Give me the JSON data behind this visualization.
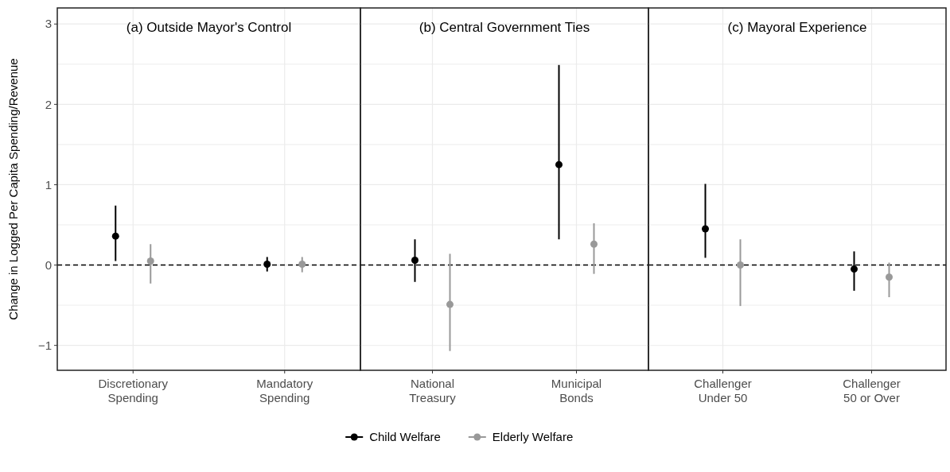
{
  "chart_data": [
    {
      "type": "scatter",
      "title": "(a) Outside Mayor's Control",
      "ylabel": "Change in Logged Per Capita Spending/Revenue",
      "categories": [
        "Discretionary\nSpending",
        "Mandatory\nSpending"
      ],
      "ylim": [
        -1.31,
        3.2
      ],
      "yticks": [
        {
          "value": -1,
          "label": "−1"
        },
        {
          "value": -0.5,
          "label": null
        },
        0,
        {
          "value": 0.5,
          "label": null
        },
        1,
        {
          "value": 1.5,
          "label": null
        },
        2,
        {
          "value": 2.5,
          "label": null
        },
        3
      ],
      "grid": true,
      "marker": "circle",
      "legend": "bottom",
      "ref_lines": [
        {
          "axis": "y",
          "value": 0,
          "line_style": "dashed",
          "color": "#000000"
        }
      ],
      "series": [
        {
          "name": "Child Welfare",
          "color": "#000000",
          "values": [
            0.36,
            0.01
          ],
          "errors": [
            [
              0.05,
              0.74
            ],
            [
              -0.08,
              0.1
            ]
          ]
        },
        {
          "name": "Elderly Welfare",
          "color": "#999999",
          "values": [
            0.05,
            0.01
          ],
          "errors": [
            [
              -0.23,
              0.26
            ],
            [
              -0.09,
              0.1
            ]
          ]
        }
      ]
    },
    {
      "type": "scatter",
      "title": "(b) Central Government Ties",
      "categories": [
        "National\nTreasury",
        "Municipal\nBonds"
      ],
      "ylim": [
        -1.31,
        3.2
      ],
      "yticks": [
        {
          "value": -1,
          "label": null
        },
        {
          "value": -0.5,
          "label": null
        },
        0,
        {
          "value": 0.5,
          "label": null
        },
        1,
        {
          "value": 1.5,
          "label": null
        },
        2,
        {
          "value": 2.5,
          "label": null
        },
        3
      ],
      "tick_labels": "x",
      "grid": true,
      "marker": "circle",
      "ref_lines": [
        {
          "axis": "y",
          "value": 0,
          "line_style": "dashed",
          "color": "#000000"
        }
      ],
      "series": [
        {
          "color": "#000000",
          "values": [
            0.06,
            1.25
          ],
          "errors": [
            [
              -0.21,
              0.32
            ],
            [
              0.32,
              2.49
            ]
          ]
        },
        {
          "color": "#999999",
          "values": [
            -0.49,
            0.26
          ],
          "errors": [
            [
              -1.07,
              0.14
            ],
            [
              -0.11,
              0.52
            ]
          ]
        }
      ]
    },
    {
      "type": "scatter",
      "title": "(c) Mayoral Experience",
      "categories": [
        "Challenger\nUnder 50",
        "Challenger\n50 or Over"
      ],
      "ylim": [
        -1.31,
        3.2
      ],
      "yticks": [
        {
          "value": -1,
          "label": null
        },
        {
          "value": -0.5,
          "label": null
        },
        0,
        {
          "value": 0.5,
          "label": null
        },
        1,
        {
          "value": 1.5,
          "label": null
        },
        2,
        {
          "value": 2.5,
          "label": null
        },
        3
      ],
      "tick_labels": "x",
      "grid": true,
      "marker": "circle",
      "ref_lines": [
        {
          "axis": "y",
          "value": 0,
          "line_style": "dashed",
          "color": "#000000"
        }
      ],
      "series": [
        {
          "color": "#000000",
          "values": [
            0.45,
            -0.05
          ],
          "errors": [
            [
              0.09,
              1.01
            ],
            [
              -0.32,
              0.17
            ]
          ]
        },
        {
          "color": "#999999",
          "values": [
            0.0,
            -0.15
          ],
          "errors": [
            [
              -0.51,
              0.32
            ],
            [
              -0.4,
              0.03
            ]
          ]
        }
      ]
    }
  ]
}
